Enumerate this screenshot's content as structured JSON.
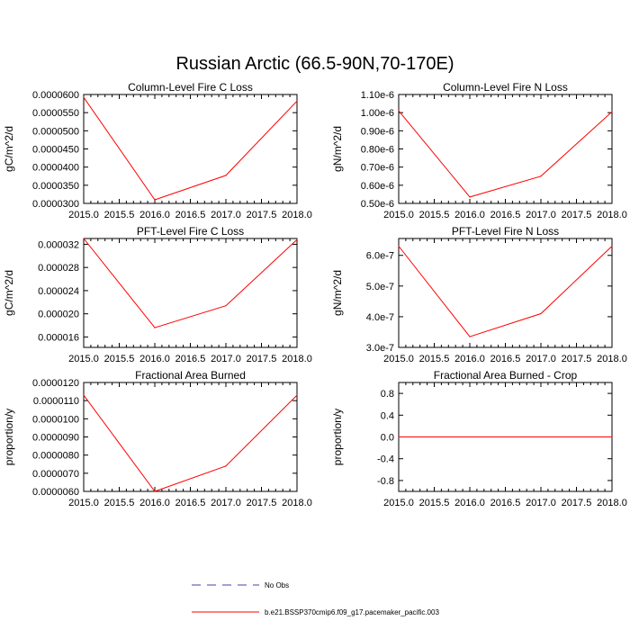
{
  "figure": {
    "title": "Russian Arctic (66.5-90N,70-170E)",
    "line_color": "#ff0000",
    "obs_color": "#4b3fa8"
  },
  "legend": {
    "obs_label": "No Obs",
    "model_label": "b.e21.BSSP370cmip6.f09_g17.pacemaker_pacific.003"
  },
  "chart_data": [
    {
      "type": "line",
      "title": "Column-Level Fire C Loss",
      "xlabel": "",
      "ylabel": "gC/m^2/d",
      "xlim": [
        2015.0,
        2018.0
      ],
      "ylim": [
        3e-05,
        6e-05
      ],
      "x_ticks": [
        "2015.0",
        "2015.5",
        "2016.0",
        "2016.5",
        "2017.0",
        "2017.5",
        "2018.0"
      ],
      "y_ticks": [
        {
          "value": 3e-05,
          "label": "0.0000300"
        },
        {
          "value": 3.5e-05,
          "label": "0.0000350"
        },
        {
          "value": 4e-05,
          "label": "0.0000400"
        },
        {
          "value": 4.5e-05,
          "label": "0.0000450"
        },
        {
          "value": 5e-05,
          "label": "0.0000500"
        },
        {
          "value": 5.5e-05,
          "label": "0.0000550"
        },
        {
          "value": 6e-05,
          "label": "0.0000600"
        }
      ],
      "x": [
        2015.0,
        2016.0,
        2017.0,
        2018.0
      ],
      "series": [
        {
          "name": "b.e21.BSSP370cmip6.f09_g17.pacemaker_pacific.003",
          "values": [
            5.92e-05,
            3.1e-05,
            3.77e-05,
            5.82e-05
          ]
        }
      ]
    },
    {
      "type": "line",
      "title": "Column-Level Fire N Loss",
      "xlabel": "",
      "ylabel": "gN/m^2/d",
      "xlim": [
        2015.0,
        2018.0
      ],
      "ylim": [
        5e-07,
        1.1e-06
      ],
      "x_ticks": [
        "2015.0",
        "2015.5",
        "2016.0",
        "2016.5",
        "2017.0",
        "2017.5",
        "2018.0"
      ],
      "y_ticks": [
        {
          "value": 5e-07,
          "label": "0.50e-6"
        },
        {
          "value": 6e-07,
          "label": "0.60e-6"
        },
        {
          "value": 7e-07,
          "label": "0.70e-6"
        },
        {
          "value": 8e-07,
          "label": "0.80e-6"
        },
        {
          "value": 9e-07,
          "label": "0.90e-6"
        },
        {
          "value": 1e-06,
          "label": "1.00e-6"
        },
        {
          "value": 1.1e-06,
          "label": "1.10e-6"
        }
      ],
      "x": [
        2015.0,
        2016.0,
        2017.0,
        2018.0
      ],
      "series": [
        {
          "name": "b.e21.BSSP370cmip6.f09_g17.pacemaker_pacific.003",
          "values": [
            1.01e-06,
            5.35e-07,
            6.5e-07,
            1.005e-06
          ]
        }
      ]
    },
    {
      "type": "line",
      "title": "PFT-Level Fire C Loss",
      "xlabel": "",
      "ylabel": "gC/m^2/d",
      "xlim": [
        2015.0,
        2018.0
      ],
      "ylim": [
        1.42e-05,
        3.3e-05
      ],
      "x_ticks": [
        "2015.0",
        "2015.5",
        "2016.0",
        "2016.5",
        "2017.0",
        "2017.5",
        "2018.0"
      ],
      "y_ticks": [
        {
          "value": 1.6e-05,
          "label": "0.000016"
        },
        {
          "value": 2e-05,
          "label": "0.000020"
        },
        {
          "value": 2.4e-05,
          "label": "0.000024"
        },
        {
          "value": 2.8e-05,
          "label": "0.000028"
        },
        {
          "value": 3.2e-05,
          "label": "0.000032"
        }
      ],
      "x": [
        2015.0,
        2016.0,
        2017.0,
        2018.0
      ],
      "series": [
        {
          "name": "b.e21.BSSP370cmip6.f09_g17.pacemaker_pacific.003",
          "values": [
            3.3e-05,
            1.76e-05,
            2.14e-05,
            3.28e-05
          ]
        }
      ]
    },
    {
      "type": "line",
      "title": "PFT-Level Fire N Loss",
      "xlabel": "",
      "ylabel": "gN/m^2/d",
      "xlim": [
        2015.0,
        2018.0
      ],
      "ylim": [
        3e-07,
        6.55e-07
      ],
      "x_ticks": [
        "2015.0",
        "2015.5",
        "2016.0",
        "2016.5",
        "2017.0",
        "2017.5",
        "2018.0"
      ],
      "y_ticks": [
        {
          "value": 3e-07,
          "label": "3.0e-7"
        },
        {
          "value": 4e-07,
          "label": "4.0e-7"
        },
        {
          "value": 5e-07,
          "label": "5.0e-7"
        },
        {
          "value": 6e-07,
          "label": "6.0e-7"
        }
      ],
      "x": [
        2015.0,
        2016.0,
        2017.0,
        2018.0
      ],
      "series": [
        {
          "name": "b.e21.BSSP370cmip6.f09_g17.pacemaker_pacific.003",
          "values": [
            6.3e-07,
            3.35e-07,
            4.1e-07,
            6.3e-07
          ]
        }
      ]
    },
    {
      "type": "line",
      "title": "Fractional Area Burned",
      "xlabel": "",
      "ylabel": "proportion/y",
      "xlim": [
        2015.0,
        2018.0
      ],
      "ylim": [
        6e-06,
        1.2e-05
      ],
      "x_ticks": [
        "2015.0",
        "2015.5",
        "2016.0",
        "2016.5",
        "2017.0",
        "2017.5",
        "2018.0"
      ],
      "y_ticks": [
        {
          "value": 6e-06,
          "label": "0.0000060"
        },
        {
          "value": 7e-06,
          "label": "0.0000070"
        },
        {
          "value": 8e-06,
          "label": "0.0000080"
        },
        {
          "value": 9e-06,
          "label": "0.0000090"
        },
        {
          "value": 1e-05,
          "label": "0.0000100"
        },
        {
          "value": 1.1e-05,
          "label": "0.0000110"
        },
        {
          "value": 1.2e-05,
          "label": "0.0000120"
        }
      ],
      "x": [
        2015.0,
        2016.0,
        2017.0,
        2018.0
      ],
      "series": [
        {
          "name": "b.e21.BSSP370cmip6.f09_g17.pacemaker_pacific.003",
          "values": [
            1.13e-05,
            6e-06,
            7.4e-06,
            1.13e-05
          ]
        }
      ]
    },
    {
      "type": "line",
      "title": "Fractional Area Burned - Crop",
      "xlabel": "",
      "ylabel": "proportion/y",
      "xlim": [
        2015.0,
        2018.0
      ],
      "ylim": [
        -1.0,
        1.0
      ],
      "x_ticks": [
        "2015.0",
        "2015.5",
        "2016.0",
        "2016.5",
        "2017.0",
        "2017.5",
        "2018.0"
      ],
      "y_ticks": [
        {
          "value": -0.8,
          "label": "-0.8"
        },
        {
          "value": -0.4,
          "label": "-0.4"
        },
        {
          "value": 0.0,
          "label": "0.0"
        },
        {
          "value": 0.4,
          "label": "0.4"
        },
        {
          "value": 0.8,
          "label": "0.8"
        }
      ],
      "x": [
        2015.0,
        2016.0,
        2017.0,
        2018.0
      ],
      "series": [
        {
          "name": "b.e21.BSSP370cmip6.f09_g17.pacemaker_pacific.003",
          "values": [
            0.0,
            0.0,
            0.0,
            0.0
          ]
        }
      ]
    }
  ]
}
